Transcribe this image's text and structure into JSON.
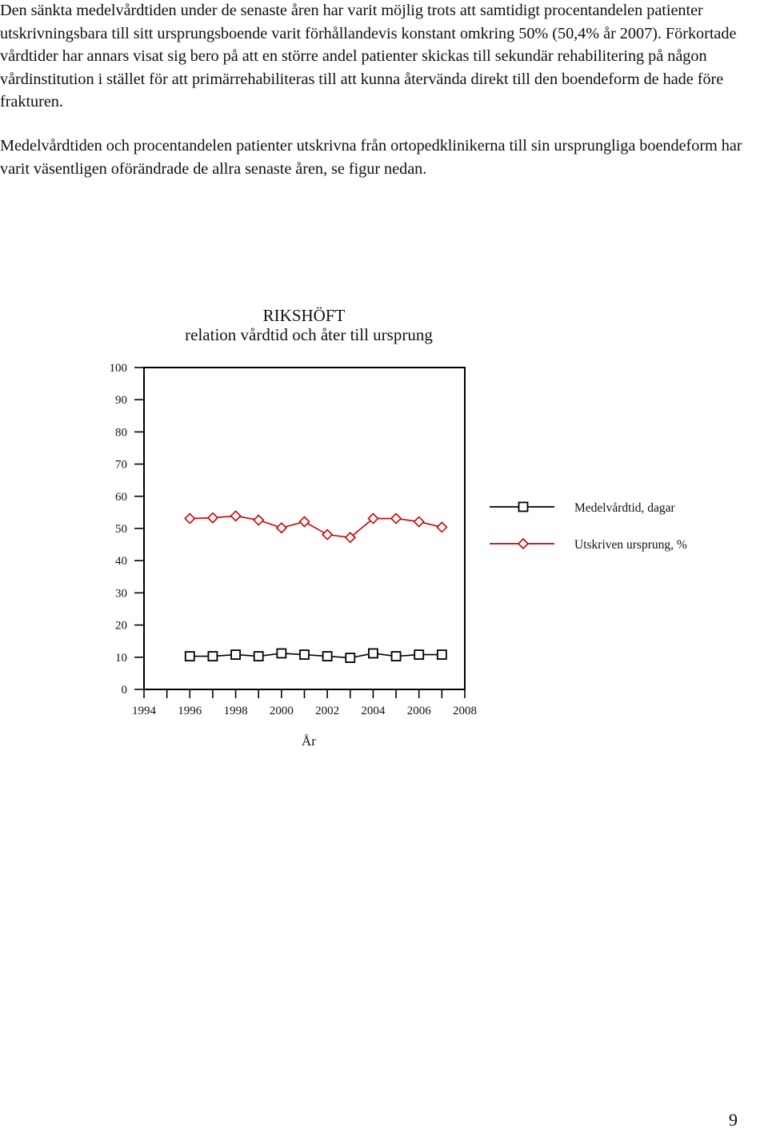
{
  "document": {
    "paragraph_1": "Den sänkta medelvårdtiden under de senaste åren har varit möjlig trots att samtidigt procentandelen patienter utskrivningsbara till sitt ursprungsboende varit förhållandevis konstant omkring 50% (50,4% år 2007). Förkortade vårdtider har annars visat sig bero på att en större andel patienter skickas till sekundär rehabilitering på någon vårdinstitution i stället för att primärrehabiliteras till att kunna återvända direkt till den boendeform de hade före frakturen.",
    "paragraph_2": "Medelvårdtiden och procentandelen patienter utskrivna från ortopedklinikerna till sin ursprungliga boendeform har varit väsentligen oförändrade de allra senaste åren, se figur nedan.",
    "page_number": "9"
  },
  "chart_data": {
    "type": "line",
    "title": "RIKSHÖFT",
    "subtitle": "relation vårdtid och åter till ursprung",
    "xlabel": "År",
    "ylabel": "",
    "xlim": [
      1994,
      2008
    ],
    "ylim": [
      0,
      100
    ],
    "x_ticks": [
      1994,
      1996,
      1998,
      2000,
      2002,
      2004,
      2006,
      2008
    ],
    "y_ticks": [
      0,
      10,
      20,
      30,
      40,
      50,
      60,
      70,
      80,
      90,
      100
    ],
    "grid": false,
    "legend_position": "right",
    "x": [
      1996,
      1997,
      1998,
      1999,
      2000,
      2001,
      2002,
      2003,
      2004,
      2005,
      2006,
      2007
    ],
    "series": [
      {
        "name": "Medelvårdtid, dagar",
        "color": "#000000",
        "marker": "square",
        "values": [
          10.3,
          10.3,
          10.8,
          10.3,
          11.2,
          10.8,
          10.3,
          9.8,
          11.2,
          10.3,
          10.8,
          10.8
        ]
      },
      {
        "name": "Utskriven ursprung, %",
        "color": "#cc0000",
        "marker": "diamond",
        "values": [
          53.1,
          53.3,
          53.9,
          52.6,
          50.2,
          52.1,
          48.1,
          47.2,
          53.1,
          53.1,
          52.1,
          50.4
        ]
      }
    ]
  }
}
